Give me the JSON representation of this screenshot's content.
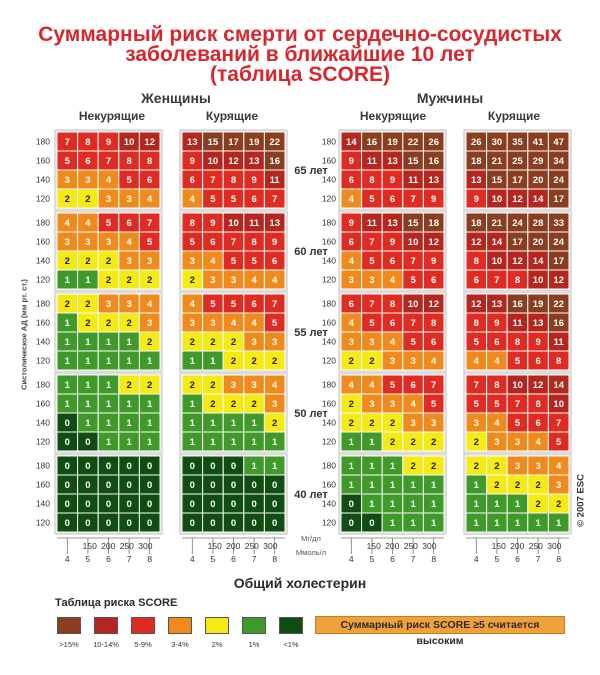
{
  "title": {
    "line1": "Суммарный риск смерти от сердечно-сосудистых",
    "line2": "заболеваний в ближайшие 10 лет",
    "line3": "(таблица SCORE)"
  },
  "genders": {
    "female": "Женщины",
    "male": "Мужчины"
  },
  "smoking": {
    "nonsmoking": "Некурящие",
    "smoking": "Курящие"
  },
  "y_axis_label": "Систолическое АД (мм рт. ст.)",
  "copyright": "© 2007 ESC",
  "x_axis": {
    "mgdl_unit": "Мг/дл",
    "mmol_unit": "Ммоль/л",
    "mgdl_ticks": [
      "150",
      "200",
      "250",
      "300"
    ],
    "mmol_ticks": [
      "4",
      "5",
      "6",
      "7",
      "8"
    ]
  },
  "cholesterol_title": "Общий холестерин",
  "legend": {
    "title": "Таблица риска SCORE",
    "note": "Суммарный риск SCORE ≥5 считается высоким",
    "items": [
      {
        "label": ">15%",
        "color": "#8b3e1f"
      },
      {
        "label": "10-14%",
        "color": "#b5261f"
      },
      {
        "label": "5-9%",
        "color": "#e02b22"
      },
      {
        "label": "3-4%",
        "color": "#f08a1c"
      },
      {
        "label": "2%",
        "color": "#f5ea16"
      },
      {
        "label": "1%",
        "color": "#3f9a2a"
      },
      {
        "label": "<1%",
        "color": "#0f4d12"
      }
    ]
  },
  "chart_data": {
    "type": "heatmap",
    "title": "Суммарный риск смерти от сердечно-сосудистых заболеваний в ближайшие 10 лет (таблица SCORE)",
    "rows_label": "Систолическое АД (мм рт. ст.)",
    "columns_label": "Общий холестерин",
    "systolic_bp": [
      "180",
      "160",
      "140",
      "120"
    ],
    "cholesterol_mmol": [
      "4",
      "5",
      "6",
      "7",
      "8"
    ],
    "ages": [
      "65 лет",
      "60 лет",
      "55 лет",
      "50 лет",
      "40 лет"
    ],
    "panels": [
      {
        "gender": "Женщины",
        "smoking": "Некурящие",
        "grids": [
          [
            [
              7,
              8,
              9,
              10,
              12
            ],
            [
              5,
              6,
              7,
              8,
              8
            ],
            [
              3,
              3,
              4,
              5,
              6
            ],
            [
              2,
              2,
              3,
              3,
              4
            ]
          ],
          [
            [
              4,
              4,
              5,
              6,
              7
            ],
            [
              3,
              3,
              3,
              4,
              5
            ],
            [
              2,
              2,
              2,
              3,
              3
            ],
            [
              1,
              1,
              2,
              2,
              2
            ]
          ],
          [
            [
              2,
              2,
              3,
              3,
              4
            ],
            [
              1,
              2,
              2,
              2,
              3
            ],
            [
              1,
              1,
              1,
              1,
              2
            ],
            [
              1,
              1,
              1,
              1,
              1
            ]
          ],
          [
            [
              1,
              1,
              1,
              2,
              2
            ],
            [
              1,
              1,
              1,
              1,
              1
            ],
            [
              0,
              1,
              1,
              1,
              1
            ],
            [
              0,
              0,
              1,
              1,
              1
            ]
          ],
          [
            [
              0,
              0,
              0,
              0,
              0
            ],
            [
              0,
              0,
              0,
              0,
              0
            ],
            [
              0,
              0,
              0,
              0,
              0
            ],
            [
              0,
              0,
              0,
              0,
              0
            ]
          ]
        ]
      },
      {
        "gender": "Женщины",
        "smoking": "Курящие",
        "grids": [
          [
            [
              13,
              15,
              17,
              19,
              22
            ],
            [
              9,
              10,
              12,
              13,
              16
            ],
            [
              6,
              7,
              8,
              9,
              11
            ],
            [
              4,
              5,
              5,
              6,
              7
            ]
          ],
          [
            [
              8,
              9,
              10,
              11,
              13
            ],
            [
              5,
              6,
              7,
              8,
              9
            ],
            [
              3,
              4,
              5,
              5,
              6
            ],
            [
              2,
              3,
              3,
              4,
              4
            ]
          ],
          [
            [
              4,
              5,
              5,
              6,
              7
            ],
            [
              3,
              3,
              4,
              4,
              5
            ],
            [
              2,
              2,
              2,
              3,
              3
            ],
            [
              1,
              1,
              2,
              2,
              2
            ]
          ],
          [
            [
              2,
              2,
              3,
              3,
              4
            ],
            [
              1,
              2,
              2,
              2,
              3
            ],
            [
              1,
              1,
              1,
              1,
              2
            ],
            [
              1,
              1,
              1,
              1,
              1
            ]
          ],
          [
            [
              0,
              0,
              0,
              1,
              1
            ],
            [
              0,
              0,
              0,
              0,
              0
            ],
            [
              0,
              0,
              0,
              0,
              0
            ],
            [
              0,
              0,
              0,
              0,
              0
            ]
          ]
        ]
      },
      {
        "gender": "Мужчины",
        "smoking": "Некурящие",
        "grids": [
          [
            [
              14,
              16,
              19,
              22,
              26
            ],
            [
              9,
              11,
              13,
              15,
              16
            ],
            [
              6,
              8,
              9,
              11,
              13
            ],
            [
              4,
              5,
              6,
              7,
              9
            ]
          ],
          [
            [
              9,
              11,
              13,
              15,
              18
            ],
            [
              6,
              7,
              9,
              10,
              12
            ],
            [
              4,
              5,
              6,
              7,
              9
            ],
            [
              3,
              3,
              4,
              5,
              6
            ]
          ],
          [
            [
              6,
              7,
              8,
              10,
              12
            ],
            [
              4,
              5,
              6,
              7,
              8
            ],
            [
              3,
              3,
              4,
              5,
              6
            ],
            [
              2,
              2,
              3,
              3,
              4
            ]
          ],
          [
            [
              4,
              4,
              5,
              6,
              7
            ],
            [
              2,
              3,
              3,
              4,
              5
            ],
            [
              2,
              2,
              2,
              3,
              3
            ],
            [
              1,
              1,
              2,
              2,
              2
            ]
          ],
          [
            [
              1,
              1,
              1,
              2,
              2
            ],
            [
              1,
              1,
              1,
              1,
              1
            ],
            [
              0,
              1,
              1,
              1,
              1
            ],
            [
              0,
              0,
              1,
              1,
              1
            ]
          ]
        ]
      },
      {
        "gender": "Мужчины",
        "smoking": "Курящие",
        "grids": [
          [
            [
              26,
              30,
              35,
              41,
              47
            ],
            [
              18,
              21,
              25,
              29,
              34
            ],
            [
              13,
              15,
              17,
              20,
              24
            ],
            [
              9,
              10,
              12,
              14,
              17
            ]
          ],
          [
            [
              18,
              21,
              24,
              28,
              33
            ],
            [
              12,
              14,
              17,
              20,
              24
            ],
            [
              8,
              10,
              12,
              14,
              17
            ],
            [
              6,
              7,
              8,
              10,
              12
            ]
          ],
          [
            [
              12,
              13,
              16,
              19,
              22
            ],
            [
              8,
              9,
              11,
              13,
              16
            ],
            [
              5,
              6,
              8,
              9,
              11
            ],
            [
              4,
              4,
              5,
              6,
              8
            ]
          ],
          [
            [
              7,
              8,
              10,
              12,
              14
            ],
            [
              5,
              5,
              7,
              8,
              10
            ],
            [
              3,
              4,
              5,
              6,
              7
            ],
            [
              2,
              3,
              3,
              4,
              5
            ]
          ],
          [
            [
              2,
              2,
              3,
              3,
              4
            ],
            [
              1,
              2,
              2,
              2,
              3
            ],
            [
              1,
              1,
              1,
              2,
              2
            ],
            [
              1,
              1,
              1,
              1,
              1
            ]
          ]
        ]
      }
    ]
  }
}
